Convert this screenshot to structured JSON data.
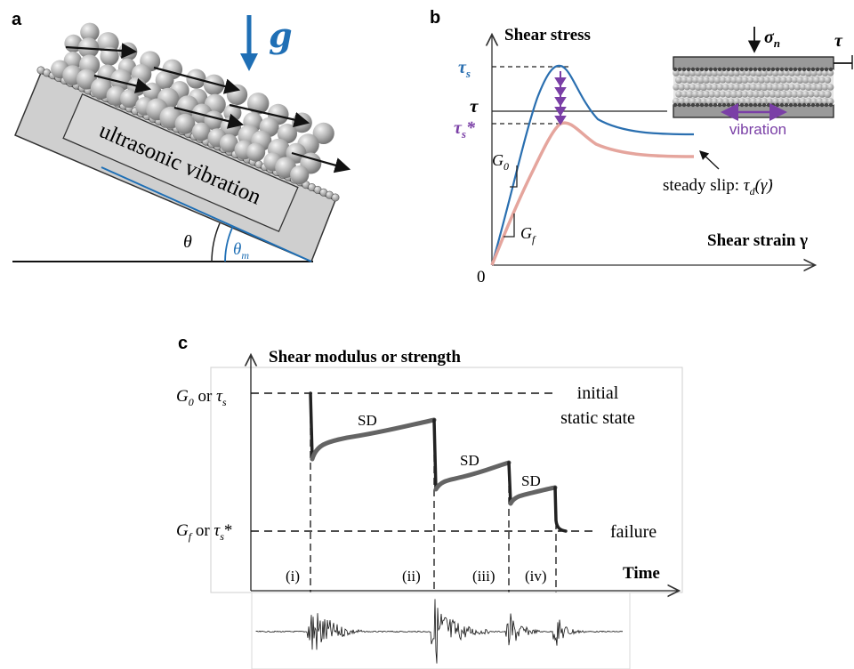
{
  "panel_a": {
    "letter": "a",
    "gravity_label": "g",
    "block_label": "ultrasonic vibration",
    "angle_label": "θ",
    "angle_m_label": "θ",
    "angle_m_sub": "m",
    "colors": {
      "block": "#cfcfcf",
      "accent": "#1f6fb5",
      "bead": "#b9b9b9"
    }
  },
  "panel_b": {
    "letter": "b",
    "ylabel": "Shear stress",
    "xlabel": "Shear strain γ",
    "origin": "0",
    "tau_s": "τ",
    "tau_s_sub": "s",
    "tau": "τ",
    "tau_s_star": "τ",
    "tau_s_star_sub": "s",
    "tau_s_star_mark": "*",
    "g0": "G",
    "g0_sub": "0",
    "gf": "G",
    "gf_sub": "f",
    "steady_label": "steady slip: ",
    "steady_tau": "τ",
    "steady_sub": "d",
    "steady_arg": "(γ̇)",
    "inset_sigma": "σ",
    "inset_sigma_sub": "n",
    "inset_tau": "τ",
    "inset_vibration": "vibration",
    "colors": {
      "intact": "#2a6fb0",
      "vibrated": "#e5a59d",
      "purple": "#7a3fa6"
    }
  },
  "panel_c": {
    "letter": "c",
    "ylabel": "Shear modulus or strength",
    "xlabel": "Time",
    "top_level_a": "G",
    "top_level_a_sub": "0",
    "top_level_or": " or ",
    "top_level_b": "τ",
    "top_level_b_sub": "s",
    "bottom_level_a": "G",
    "bottom_level_a_sub": "f",
    "bottom_level_or": " or ",
    "bottom_level_b": "τ",
    "bottom_level_b_sub": "s",
    "bottom_level_mark": "*",
    "initial_line1": "initial",
    "initial_line2": "static state",
    "failure_label": "failure",
    "sd_labels": [
      "SD",
      "SD",
      "SD"
    ],
    "events": [
      "(i)",
      "(ii)",
      "(iii)",
      "(iv)"
    ],
    "colors": {
      "curve": "#646464",
      "drop": "#222222",
      "signal": "#111111"
    }
  }
}
